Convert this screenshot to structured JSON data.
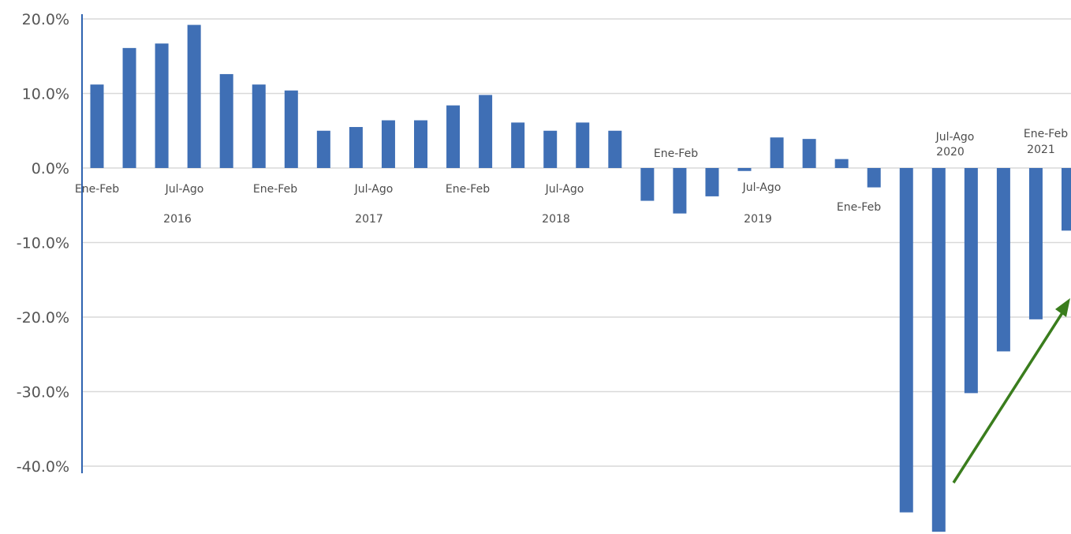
{
  "chart_data": {
    "type": "bar",
    "ylim": [
      -49,
      21
    ],
    "yticks": [
      "20.0%",
      "10.0%",
      "0.0%",
      "-10.0%",
      "-20.0%",
      "-30.0%",
      "-40.0%"
    ],
    "ytick_values": [
      20,
      10,
      0,
      -10,
      -20,
      -30,
      -40
    ],
    "grid": true,
    "colors": {
      "bar": "#3f6fb5",
      "grid": "#d9d9d9",
      "axis": "#2f63b0",
      "arrow": "#3a7d1d"
    },
    "values": [
      11.2,
      16.1,
      16.7,
      19.2,
      12.6,
      11.2,
      10.4,
      5.0,
      5.5,
      6.4,
      6.4,
      8.4,
      9.8,
      6.1,
      5.0,
      6.1,
      5.0,
      -4.4,
      -6.1,
      -3.8,
      -0.4,
      4.1,
      3.9,
      1.2,
      -2.6,
      -46.2,
      -48.8,
      -30.2,
      -24.6,
      -20.3,
      -8.4
    ],
    "period_labels": [
      {
        "index": 0,
        "text": "Ene-Feb"
      },
      {
        "index": 3,
        "text": "Jul-Ago"
      },
      {
        "index": 6,
        "text": "Ene-Feb"
      },
      {
        "index": 9,
        "text": "Jul-Ago"
      },
      {
        "index": 12,
        "text": "Ene-Feb"
      },
      {
        "index": 15,
        "text": "Jul-Ago"
      },
      {
        "index": 18,
        "text": "Ene-Feb"
      },
      {
        "index": 21,
        "text": "Jul-Ago"
      },
      {
        "index": 24,
        "text": "Ene-Feb"
      },
      {
        "index": 27,
        "text": "Jul-Ago"
      },
      {
        "index": 30,
        "text": "Ene-Feb"
      }
    ],
    "year_labels": [
      {
        "index": 3,
        "text": "2016"
      },
      {
        "index": 9,
        "text": "2017"
      },
      {
        "index": 15,
        "text": "2018"
      },
      {
        "index": 21,
        "text": "2019"
      },
      {
        "index": 27,
        "text": "2020"
      },
      {
        "index": 30,
        "text": "2021"
      }
    ],
    "annotation": "arrow-upward-trend"
  }
}
